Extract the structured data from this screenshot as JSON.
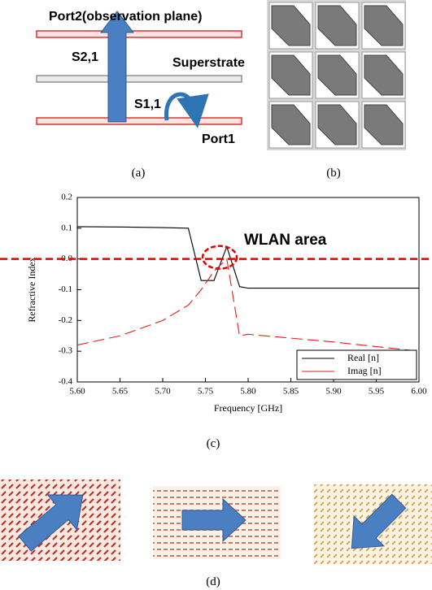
{
  "panel_a": {
    "port2": "Port2(observation plane)",
    "superstrate": "Superstrate",
    "port1": "Port1",
    "s21": "S2,1",
    "s11": "S1,1",
    "caption": "(a)"
  },
  "panel_b": {
    "caption": "(b)"
  },
  "chart_data": {
    "type": "line",
    "x_label": "Frequency [GHz]",
    "y_label": "Refractive Index",
    "annotation": "WLAN area",
    "caption": "(c)",
    "x": [
      5.6,
      5.65,
      5.7,
      5.73,
      5.745,
      5.76,
      5.775,
      5.79,
      5.8,
      5.9,
      6.0
    ],
    "series": [
      {
        "name": "Real [n]",
        "color": "#000000",
        "dash": "solid",
        "values": [
          0.105,
          0.104,
          0.102,
          0.1,
          -0.07,
          -0.07,
          0.04,
          -0.09,
          -0.095,
          -0.095,
          -0.095
        ]
      },
      {
        "name": "Imag [n]",
        "color": "#e0201c",
        "dash": "dashed",
        "values": [
          -0.28,
          -0.25,
          -0.2,
          -0.15,
          -0.1,
          -0.04,
          0.0,
          -0.25,
          -0.245,
          -0.27,
          -0.3
        ]
      }
    ],
    "xlim": [
      5.6,
      6.0
    ],
    "xticks": [
      {
        "value": 5.6,
        "label": "5.60"
      },
      {
        "value": 5.65,
        "label": "5.65"
      },
      {
        "value": 5.7,
        "label": "5.70"
      },
      {
        "value": 5.75,
        "label": "5.75"
      },
      {
        "value": 5.8,
        "label": "5.80"
      },
      {
        "value": 5.85,
        "label": "5.85"
      },
      {
        "value": 5.9,
        "label": "5.90"
      },
      {
        "value": 5.95,
        "label": "5.95"
      },
      {
        "value": 6.0,
        "label": "6.00"
      }
    ],
    "ylim": [
      -0.4,
      0.2
    ],
    "yticks": [
      -0.4,
      -0.3,
      -0.2,
      -0.1,
      {
        "value": 0,
        "label": "0.0"
      },
      0.1,
      0.2
    ],
    "hline": 0,
    "legend": "lower right",
    "grid": false
  },
  "panel_d": {
    "caption": "(d)"
  }
}
